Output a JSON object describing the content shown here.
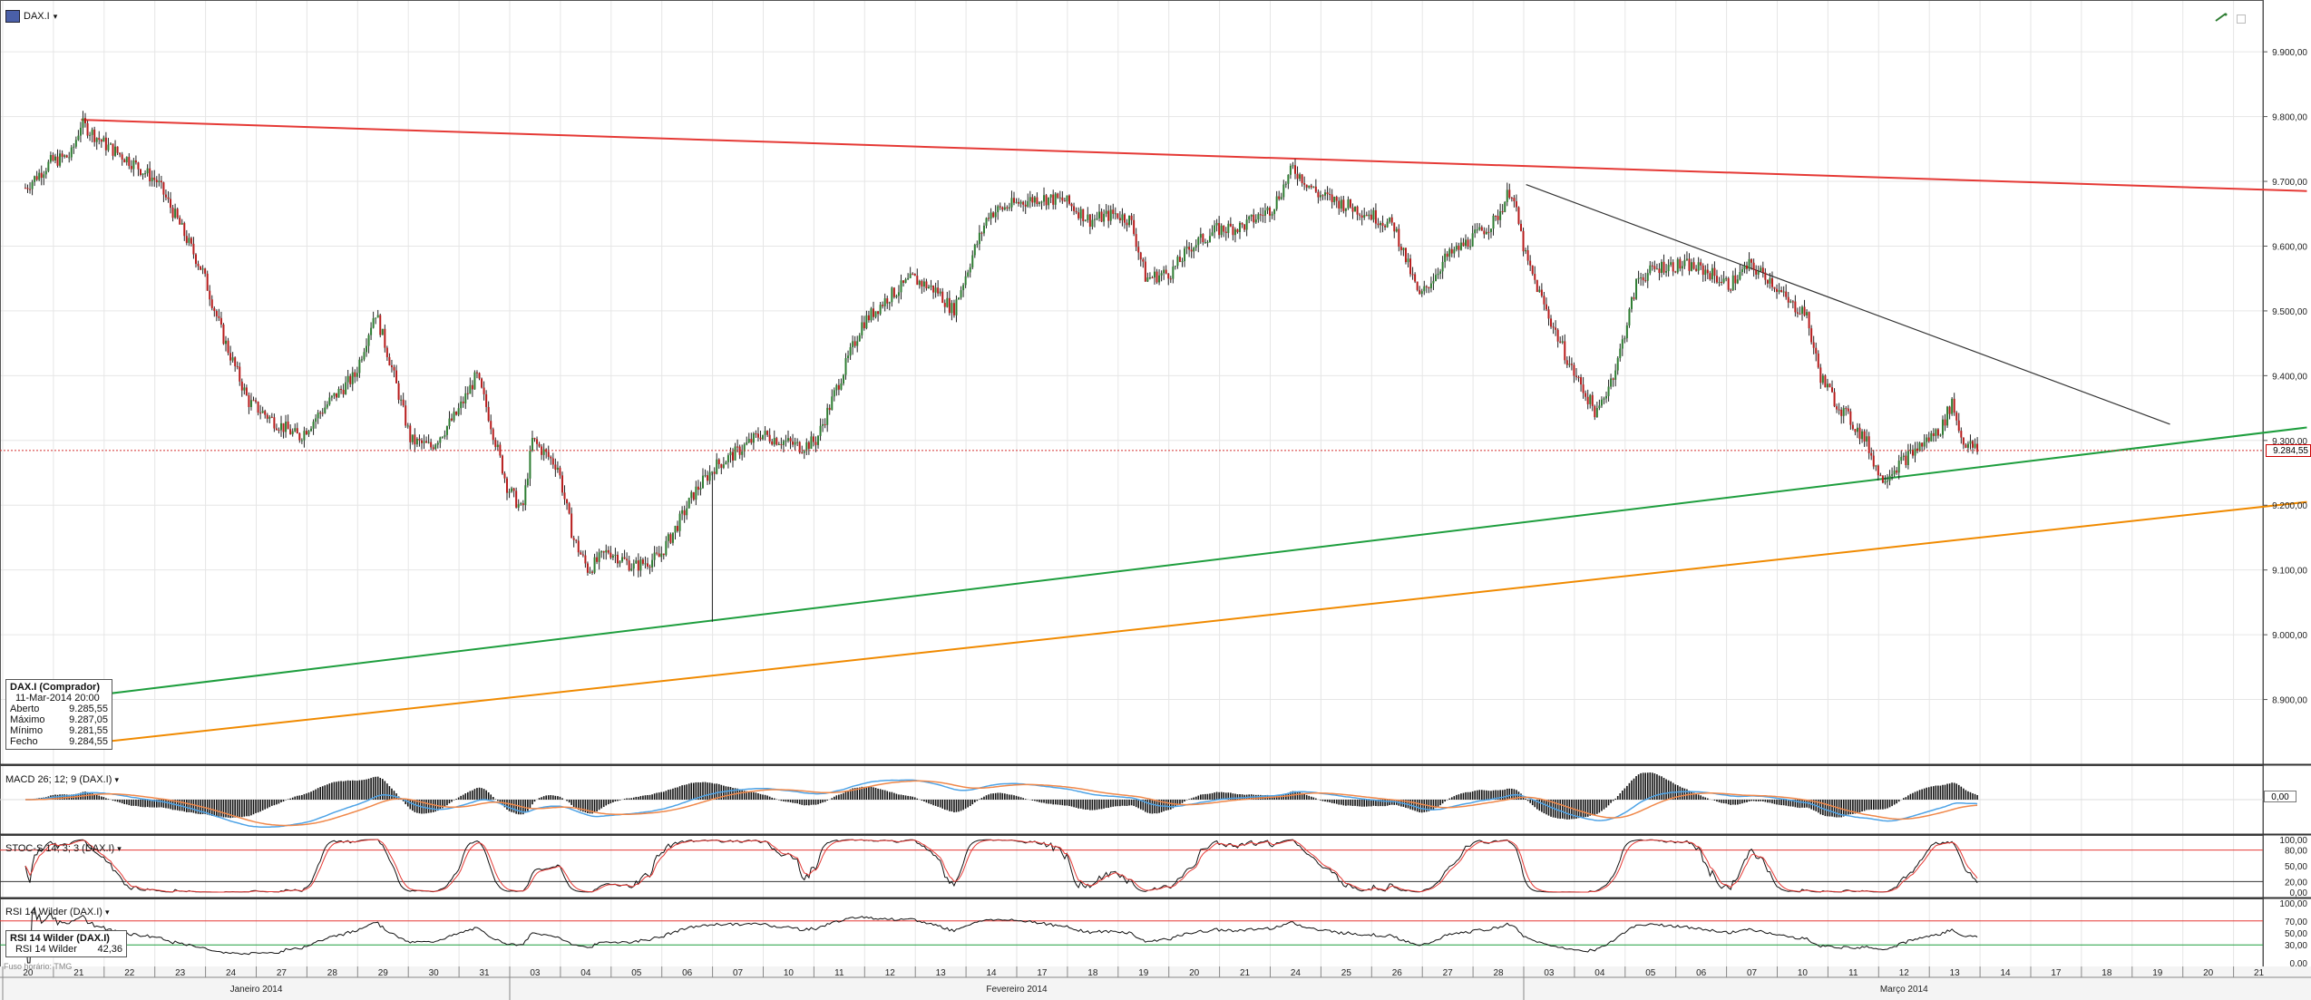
{
  "header": {
    "symbol": "DAX.I",
    "dropdown_glyph": "▾"
  },
  "info_box": {
    "title": "DAX.I (Comprador)",
    "datetime": "11-Mar-2014 20:00",
    "rows": [
      {
        "label": "Aberto",
        "value": "9.285,55"
      },
      {
        "label": "Máximo",
        "value": "9.287,05"
      },
      {
        "label": "Mínimo",
        "value": "9.281,55"
      },
      {
        "label": "Fecho",
        "value": "9.284,55"
      }
    ]
  },
  "current_price_label": "9.284,55",
  "panels": {
    "macd": {
      "title": "MACD 26; 12; 9 (DAX.I)",
      "right_label": "0,00"
    },
    "stoch": {
      "title": "STOC-S 14; 3; 3 (DAX.I)",
      "ticks": [
        "100,00",
        "80,00",
        "50,00",
        "20,00",
        "0,00"
      ]
    },
    "rsi": {
      "title": "RSI 14 Wilder (DAX.I)",
      "box_title": "RSI 14 Wilder (DAX.I)",
      "box_label": "RSI 14 Wilder",
      "box_value": "42,36",
      "ticks": [
        "100,00",
        "70,00",
        "50,00",
        "30,00",
        "0,00"
      ]
    }
  },
  "footer_note": "Fuso horário: TMG",
  "colors": {
    "up": "#2e7d32",
    "down": "#b71c1c",
    "resistance": "#e53935",
    "support_green": "#1e9e3e",
    "support_orange": "#f08a00",
    "down_trend": "#333333",
    "grid": "#e6e6e6"
  },
  "chart_data": {
    "type": "candlestick",
    "symbol": "DAX.I",
    "y_ticks": [
      "9.900,00",
      "9.800,00",
      "9.700,00",
      "9.600,00",
      "9.500,00",
      "9.400,00",
      "9.300,00",
      "9.200,00",
      "9.100,00",
      "9.000,00",
      "8.900,00"
    ],
    "ylim": [
      8800,
      9980
    ],
    "x_day_labels": [
      "20",
      "21",
      "22",
      "23",
      "24",
      "27",
      "28",
      "29",
      "30",
      "31",
      "03",
      "04",
      "05",
      "06",
      "07",
      "10",
      "11",
      "12",
      "13",
      "14",
      "17",
      "18",
      "19",
      "20",
      "21",
      "24",
      "25",
      "26",
      "27",
      "28",
      "03",
      "04",
      "05",
      "06",
      "07",
      "10",
      "11",
      "12",
      "13",
      "14",
      "17",
      "18",
      "19",
      "20",
      "21"
    ],
    "months": [
      {
        "label": "Janeiro 2014",
        "start": 0,
        "end": 10
      },
      {
        "label": "Fevereiro 2014",
        "start": 10,
        "end": 30
      },
      {
        "label": "Março 2014",
        "start": 30,
        "end": 45
      }
    ],
    "last_data_day_index": 36,
    "close_path": [
      [
        0.0,
        9690
      ],
      [
        0.5,
        9730
      ],
      [
        0.9,
        9740
      ],
      [
        1.1,
        9790
      ],
      [
        1.6,
        9755
      ],
      [
        2.0,
        9735
      ],
      [
        2.6,
        9700
      ],
      [
        3.0,
        9640
      ],
      [
        3.5,
        9560
      ],
      [
        3.9,
        9460
      ],
      [
        4.4,
        9360
      ],
      [
        4.9,
        9330
      ],
      [
        5.4,
        9305
      ],
      [
        6.0,
        9360
      ],
      [
        6.5,
        9400
      ],
      [
        6.9,
        9500
      ],
      [
        7.2,
        9420
      ],
      [
        7.6,
        9300
      ],
      [
        8.0,
        9290
      ],
      [
        8.5,
        9340
      ],
      [
        8.9,
        9400
      ],
      [
        9.1,
        9350
      ],
      [
        9.5,
        9230
      ],
      [
        9.8,
        9190
      ],
      [
        10.0,
        9300
      ],
      [
        10.5,
        9260
      ],
      [
        10.8,
        9150
      ],
      [
        11.1,
        9100
      ],
      [
        11.5,
        9130
      ],
      [
        12.0,
        9105
      ],
      [
        12.5,
        9120
      ],
      [
        12.9,
        9175
      ],
      [
        13.2,
        9220
      ],
      [
        13.6,
        9260
      ],
      [
        14.0,
        9280
      ],
      [
        14.5,
        9310
      ],
      [
        14.9,
        9300
      ],
      [
        15.3,
        9290
      ],
      [
        15.6,
        9300
      ],
      [
        16.0,
        9380
      ],
      [
        16.5,
        9480
      ],
      [
        17.0,
        9520
      ],
      [
        17.5,
        9550
      ],
      [
        18.0,
        9530
      ],
      [
        18.3,
        9500
      ],
      [
        18.7,
        9590
      ],
      [
        19.0,
        9650
      ],
      [
        19.5,
        9665
      ],
      [
        20.0,
        9675
      ],
      [
        20.5,
        9670
      ],
      [
        21.0,
        9640
      ],
      [
        21.5,
        9650
      ],
      [
        21.8,
        9640
      ],
      [
        22.1,
        9550
      ],
      [
        22.6,
        9560
      ],
      [
        23.0,
        9600
      ],
      [
        23.5,
        9625
      ],
      [
        24.0,
        9630
      ],
      [
        24.6,
        9660
      ],
      [
        25.0,
        9720
      ],
      [
        25.5,
        9680
      ],
      [
        26.0,
        9665
      ],
      [
        26.5,
        9650
      ],
      [
        27.0,
        9630
      ],
      [
        27.5,
        9520
      ],
      [
        28.0,
        9580
      ],
      [
        28.5,
        9610
      ],
      [
        29.0,
        9640
      ],
      [
        29.3,
        9690
      ],
      [
        29.6,
        9580
      ],
      [
        30.0,
        9500
      ],
      [
        30.5,
        9410
      ],
      [
        31.0,
        9340
      ],
      [
        31.4,
        9420
      ],
      [
        31.8,
        9550
      ],
      [
        32.3,
        9570
      ],
      [
        32.8,
        9570
      ],
      [
        33.2,
        9560
      ],
      [
        33.6,
        9540
      ],
      [
        34.0,
        9570
      ],
      [
        34.4,
        9550
      ],
      [
        34.8,
        9510
      ],
      [
        35.1,
        9500
      ],
      [
        35.4,
        9400
      ],
      [
        35.7,
        9360
      ],
      [
        36.0,
        9330
      ],
      [
        36.3,
        9300
      ],
      [
        36.6,
        9240
      ],
      [
        36.9,
        9260
      ],
      [
        37.2,
        9280
      ],
      [
        37.5,
        9300
      ],
      [
        37.8,
        9320
      ],
      [
        38.0,
        9360
      ],
      [
        38.2,
        9300
      ],
      [
        38.5,
        9284.55
      ]
    ],
    "lines": [
      {
        "name": "resistance",
        "color": "#e53935",
        "from": [
          1.1,
          9795
        ],
        "to": [
          45.0,
          9685
        ]
      },
      {
        "name": "down-trend",
        "color": "#333333",
        "from": [
          29.6,
          9695
        ],
        "to": [
          42.3,
          9325
        ]
      },
      {
        "name": "support",
        "color": "#1e9e3e",
        "from": [
          1.0,
          8903
        ],
        "to": [
          45.0,
          9320
        ]
      },
      {
        "name": "support-2",
        "color": "#f08a00",
        "from": [
          1.0,
          8830
        ],
        "to": [
          45.0,
          9205
        ]
      }
    ],
    "stoch_levels": [
      80,
      20
    ],
    "rsi_levels": [
      70,
      30
    ],
    "rsi_last": 42.36
  }
}
